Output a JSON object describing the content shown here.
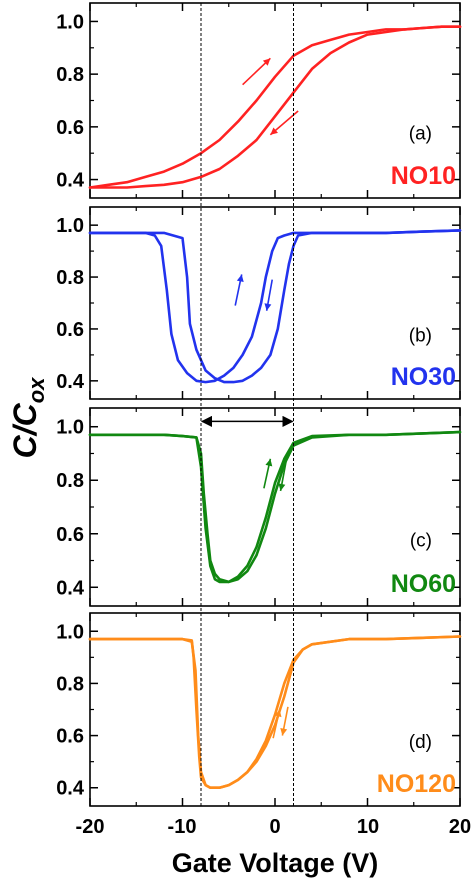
{
  "chart_data": {
    "type": "line",
    "xlabel": "Gate Voltage (V)",
    "ylabel": "C/C",
    "ylabel_subscript": "ox",
    "xlim": [
      -20,
      20
    ],
    "ylim": [
      0.33,
      1.07
    ],
    "x_ticks": [
      -20,
      -10,
      0,
      10,
      20
    ],
    "y_ticks": [
      0.4,
      0.6,
      0.8,
      1.0
    ],
    "x_tick_labels": [
      "-20",
      "-10",
      "0",
      "10",
      "20"
    ],
    "y_tick_labels": [
      "0.4",
      "0.6",
      "0.8",
      "1.0"
    ],
    "reference_lines_x": [
      -8,
      2
    ],
    "double_arrow": {
      "panel": 2,
      "x": [
        -8,
        2
      ],
      "y": 1.02
    },
    "panels": [
      {
        "label": "(a)",
        "sample": "NO10",
        "color": "#ff2222",
        "series": [
          {
            "direction": "up",
            "x": [
              -20,
              -18,
              -16,
              -14,
              -12,
              -10,
              -8,
              -6,
              -4,
              -2,
              0,
              2,
              4,
              6,
              8,
              10,
              12,
              14,
              16,
              18,
              20
            ],
            "y": [
              0.37,
              0.38,
              0.39,
              0.41,
              0.43,
              0.46,
              0.5,
              0.55,
              0.62,
              0.7,
              0.79,
              0.87,
              0.91,
              0.93,
              0.95,
              0.96,
              0.97,
              0.97,
              0.975,
              0.98,
              0.98
            ]
          },
          {
            "direction": "down",
            "x": [
              20,
              18,
              16,
              14,
              12,
              10,
              8,
              6,
              4,
              2,
              0,
              -2,
              -4,
              -6,
              -8,
              -10,
              -12,
              -14,
              -16,
              -18,
              -20
            ],
            "y": [
              0.98,
              0.98,
              0.975,
              0.97,
              0.96,
              0.95,
              0.92,
              0.88,
              0.82,
              0.73,
              0.64,
              0.55,
              0.49,
              0.44,
              0.41,
              0.39,
              0.38,
              0.375,
              0.37,
              0.37,
              0.37
            ]
          }
        ],
        "arrows": [
          {
            "from": [
              -3.5,
              0.76
            ],
            "to": [
              -0.5,
              0.86
            ]
          },
          {
            "from": [
              2.5,
              0.66
            ],
            "to": [
              -0.5,
              0.57
            ]
          }
        ]
      },
      {
        "label": "(b)",
        "sample": "NO30",
        "color": "#2233ee",
        "series": [
          {
            "direction": "down",
            "x": [
              -20,
              -16,
              -14,
              -13,
              -12.3,
              -11.7,
              -11.2,
              -10.5,
              -9.5,
              -8.5,
              -7.5,
              -6.5,
              -5.5,
              -4.5,
              -3.5,
              -2.5,
              -1.5,
              -1,
              -0.3,
              0.3,
              1,
              2,
              4,
              8,
              12,
              16,
              20
            ],
            "y": [
              0.97,
              0.97,
              0.97,
              0.96,
              0.92,
              0.75,
              0.58,
              0.48,
              0.43,
              0.4,
              0.395,
              0.4,
              0.42,
              0.45,
              0.5,
              0.57,
              0.7,
              0.8,
              0.9,
              0.95,
              0.96,
              0.97,
              0.97,
              0.97,
              0.97,
              0.975,
              0.98
            ]
          },
          {
            "direction": "up",
            "x": [
              20,
              16,
              12,
              8,
              4,
              2.5,
              2,
              1.5,
              1,
              0.3,
              -0.5,
              -1.5,
              -2.5,
              -3.5,
              -4.5,
              -5.5,
              -6.5,
              -7.5,
              -8.5,
              -9.2,
              -9.5,
              -10,
              -12,
              -16,
              -20
            ],
            "y": [
              0.98,
              0.975,
              0.97,
              0.97,
              0.97,
              0.96,
              0.92,
              0.85,
              0.75,
              0.6,
              0.5,
              0.45,
              0.42,
              0.4,
              0.395,
              0.395,
              0.41,
              0.44,
              0.52,
              0.62,
              0.8,
              0.95,
              0.97,
              0.97,
              0.97
            ]
          }
        ],
        "arrows": [
          {
            "from": [
              -4.3,
              0.69
            ],
            "to": [
              -3.6,
              0.81
            ]
          },
          {
            "from": [
              -0.3,
              0.79
            ],
            "to": [
              -0.9,
              0.67
            ]
          }
        ]
      },
      {
        "label": "(c)",
        "sample": "NO60",
        "color": "#118811",
        "series": [
          {
            "direction": "down",
            "x": [
              -20,
              -16,
              -12,
              -10,
              -8.5,
              -8,
              -7.7,
              -7.3,
              -7,
              -6.5,
              -6,
              -5,
              -4,
              -3,
              -2,
              -1,
              0,
              1,
              2,
              4,
              8,
              12,
              16,
              20
            ],
            "y": [
              0.97,
              0.97,
              0.97,
              0.965,
              0.96,
              0.9,
              0.75,
              0.6,
              0.5,
              0.45,
              0.43,
              0.42,
              0.43,
              0.46,
              0.52,
              0.62,
              0.75,
              0.86,
              0.93,
              0.96,
              0.97,
              0.97,
              0.975,
              0.98
            ]
          },
          {
            "direction": "up",
            "x": [
              20,
              16,
              12,
              8,
              4,
              2,
              1,
              0,
              -1,
              -2,
              -3,
              -4,
              -5,
              -6,
              -6.5,
              -7,
              -7.5,
              -8,
              -8.5,
              -10,
              -12,
              -16,
              -20
            ],
            "y": [
              0.98,
              0.975,
              0.97,
              0.97,
              0.965,
              0.94,
              0.88,
              0.79,
              0.66,
              0.55,
              0.48,
              0.44,
              0.42,
              0.42,
              0.43,
              0.48,
              0.62,
              0.85,
              0.96,
              0.965,
              0.97,
              0.97,
              0.97
            ]
          }
        ],
        "arrows": [
          {
            "from": [
              -1.2,
              0.77
            ],
            "to": [
              -0.5,
              0.88
            ]
          },
          {
            "from": [
              1.2,
              0.87
            ],
            "to": [
              0.6,
              0.76
            ]
          }
        ]
      },
      {
        "label": "(d)",
        "sample": "NO120",
        "color": "#ff8c1a",
        "series": [
          {
            "direction": "down",
            "x": [
              -20,
              -16,
              -12,
              -10,
              -9,
              -8.8,
              -8.5,
              -8.2,
              -8,
              -7.5,
              -7,
              -6,
              -5,
              -4,
              -3,
              -2,
              -1,
              0,
              1,
              2,
              3,
              4,
              8,
              12,
              16,
              20
            ],
            "y": [
              0.97,
              0.97,
              0.97,
              0.97,
              0.965,
              0.9,
              0.7,
              0.52,
              0.44,
              0.41,
              0.4,
              0.4,
              0.41,
              0.43,
              0.46,
              0.5,
              0.56,
              0.64,
              0.75,
              0.88,
              0.93,
              0.95,
              0.97,
              0.97,
              0.975,
              0.98
            ]
          },
          {
            "direction": "up",
            "x": [
              20,
              16,
              12,
              8,
              4,
              3,
              2,
              1,
              0,
              -1,
              -2,
              -3,
              -4,
              -5,
              -6,
              -7,
              -7.5,
              -8,
              -8.3,
              -8.6,
              -9,
              -10,
              -12,
              -16,
              -20
            ],
            "y": [
              0.98,
              0.975,
              0.97,
              0.97,
              0.95,
              0.93,
              0.89,
              0.8,
              0.68,
              0.58,
              0.51,
              0.46,
              0.43,
              0.41,
              0.4,
              0.4,
              0.41,
              0.46,
              0.6,
              0.85,
              0.96,
              0.97,
              0.97,
              0.97,
              0.97
            ]
          }
        ],
        "arrows": [
          {
            "from": [
              -0.2,
              0.59
            ],
            "to": [
              0.5,
              0.7
            ]
          },
          {
            "from": [
              1.4,
              0.71
            ],
            "to": [
              0.8,
              0.6
            ]
          }
        ]
      }
    ]
  }
}
